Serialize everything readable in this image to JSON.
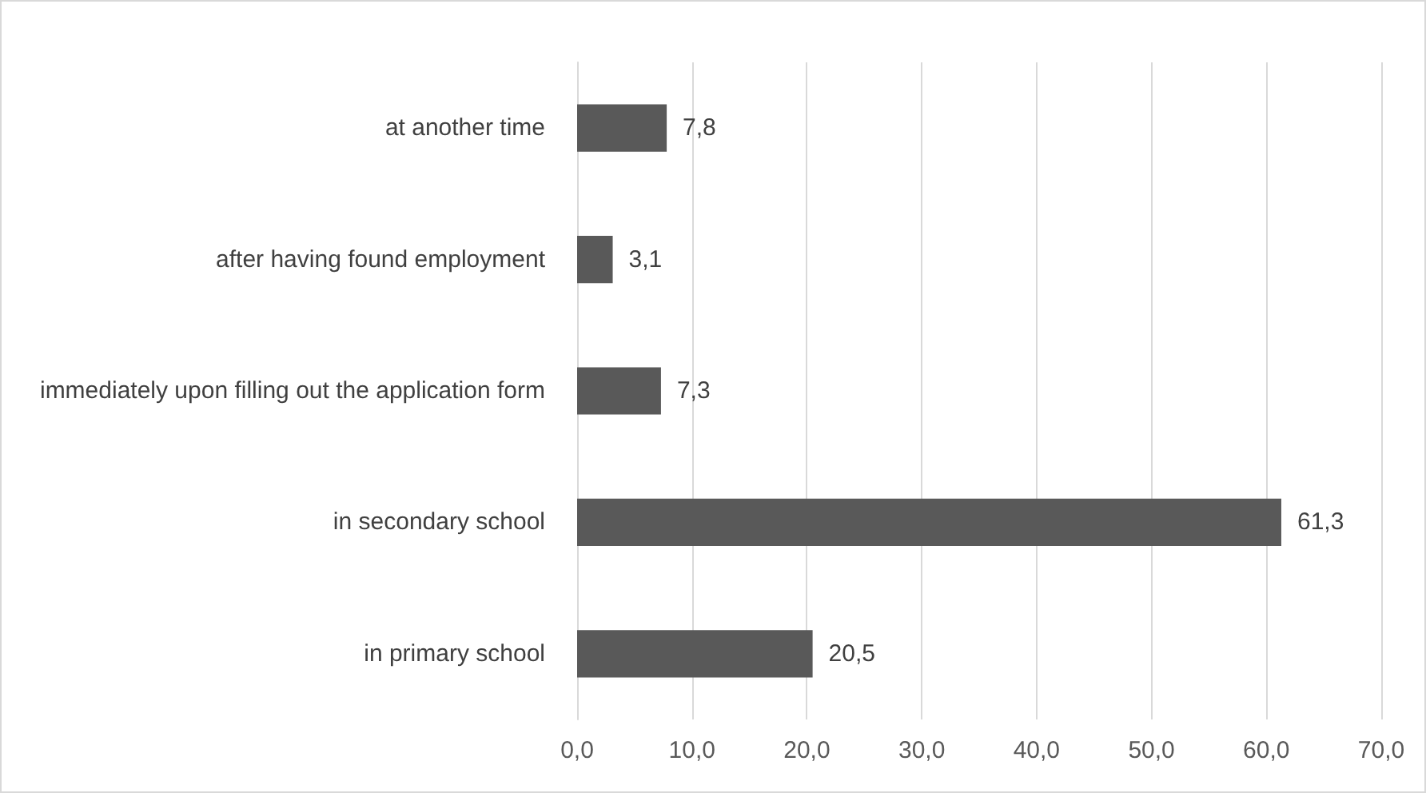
{
  "chart_data": {
    "type": "bar",
    "orientation": "horizontal",
    "categories": [
      "at another time",
      "after having found employment",
      "immediately upon filling out the application form",
      "in secondary school",
      "in primary school"
    ],
    "values": [
      7.8,
      3.1,
      7.3,
      61.3,
      20.5
    ],
    "value_labels": [
      "7,8",
      "3,1",
      "7,3",
      "61,3",
      "20,5"
    ],
    "color": "#595959",
    "xlim": [
      0,
      70
    ],
    "xticks": [
      {
        "value": 0,
        "label": "0,0"
      },
      {
        "value": 10,
        "label": "10,0"
      },
      {
        "value": 20,
        "label": "20,0"
      },
      {
        "value": 30,
        "label": "30,0"
      },
      {
        "value": 40,
        "label": "40,0"
      },
      {
        "value": 50,
        "label": "50,0"
      },
      {
        "value": 60,
        "label": "60,0"
      },
      {
        "value": 70,
        "label": "70,0"
      }
    ],
    "grid": "x"
  }
}
